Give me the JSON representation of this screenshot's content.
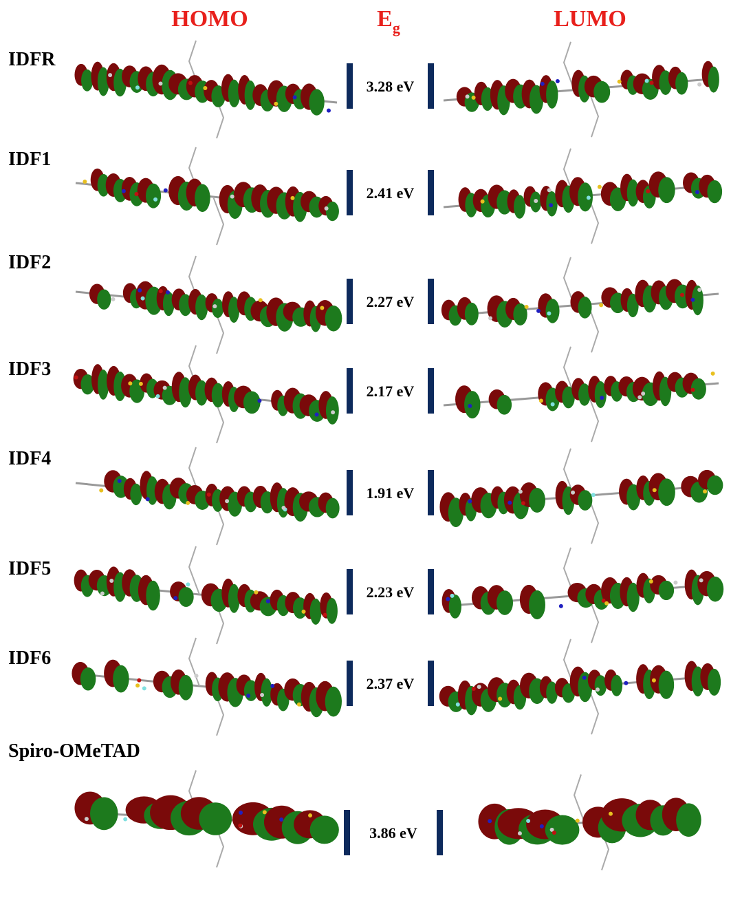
{
  "header": {
    "homo": "HOMO",
    "gap": {
      "main": "E",
      "sub": "g"
    },
    "lumo": "LUMO"
  },
  "rows": [
    {
      "name": "IDFR",
      "gap": "3.28 eV"
    },
    {
      "name": "IDF1",
      "gap": "2.41 eV"
    },
    {
      "name": "IDF2",
      "gap": "2.27 eV"
    },
    {
      "name": "IDF3",
      "gap": "2.17 eV"
    },
    {
      "name": "IDF4",
      "gap": "1.91 eV"
    },
    {
      "name": "IDF5",
      "gap": "2.23 eV"
    },
    {
      "name": "IDF6",
      "gap": "2.37 eV"
    },
    {
      "name": "Spiro-OMeTAD",
      "gap": "3.86 eV"
    }
  ]
}
